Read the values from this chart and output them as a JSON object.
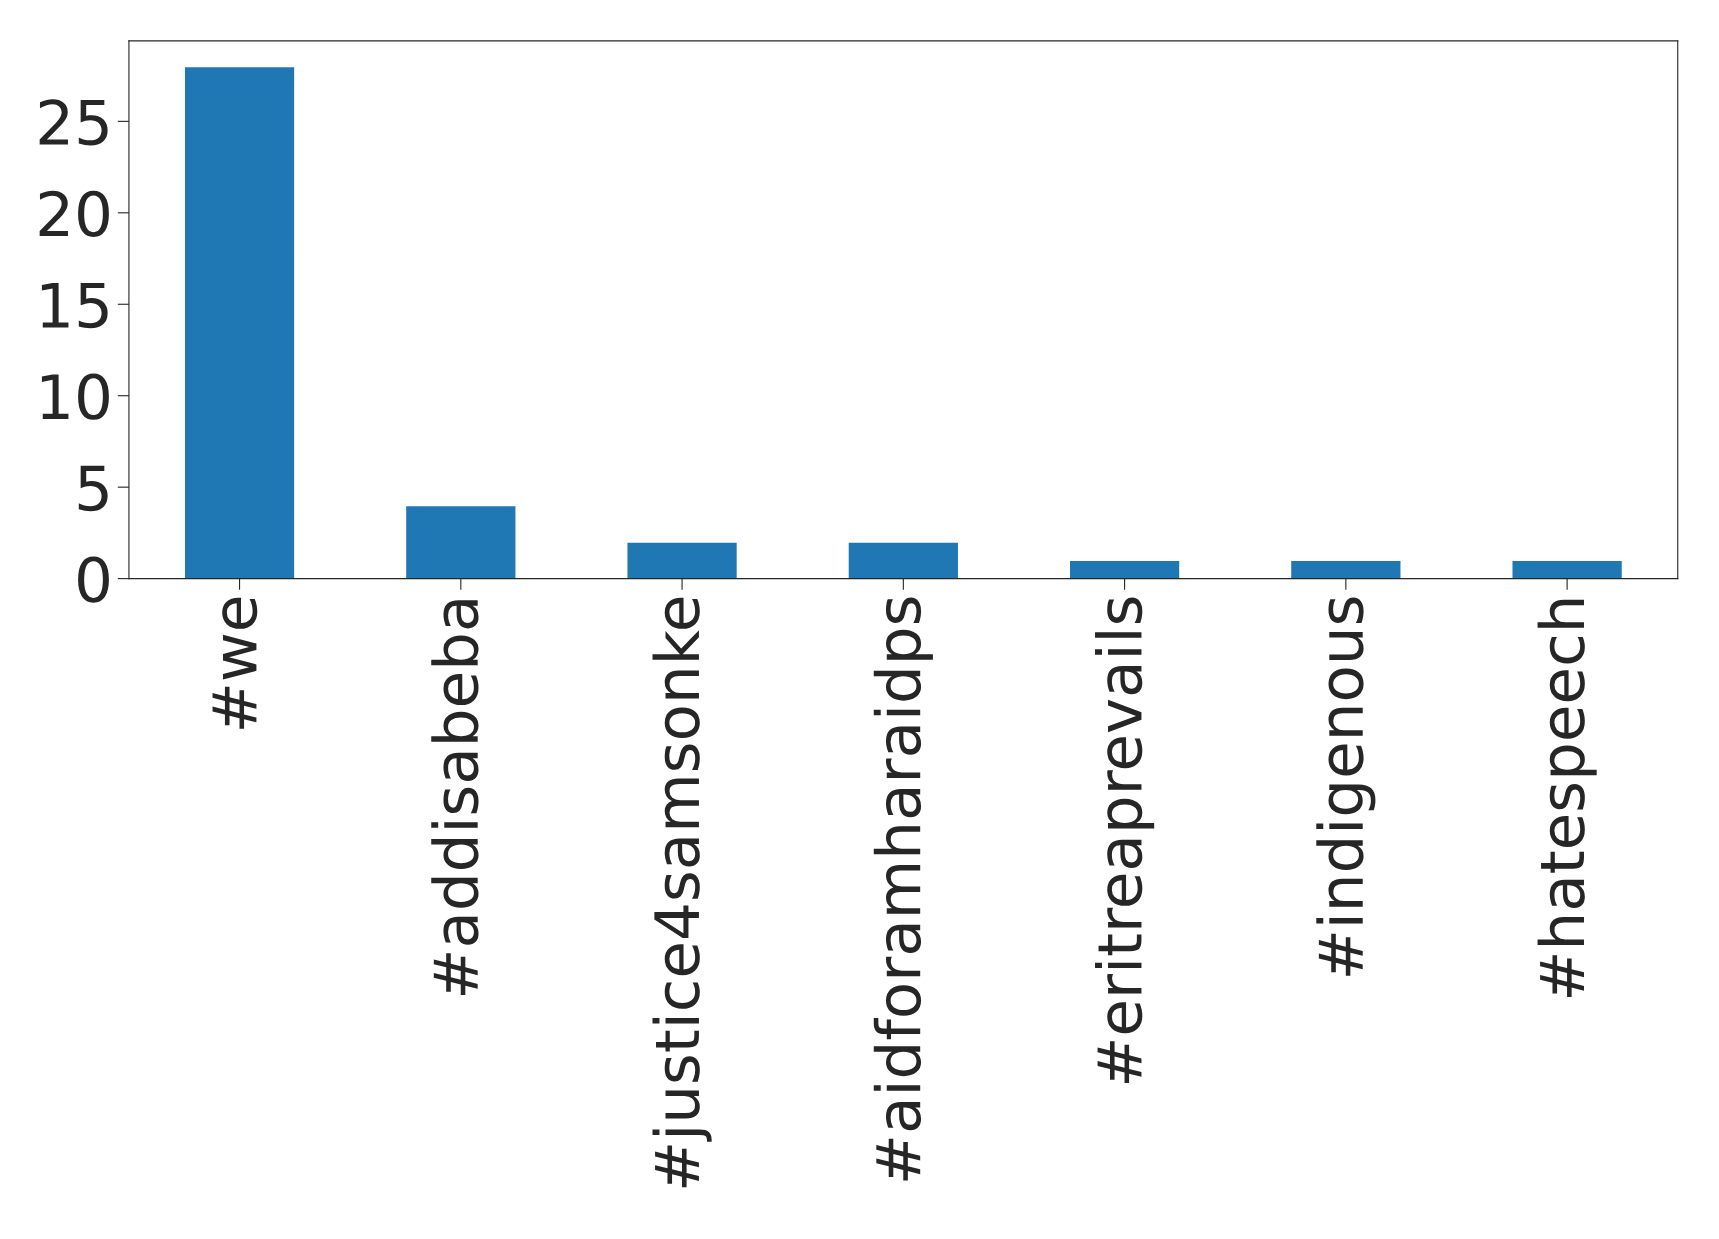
{
  "chart_data": {
    "type": "bar",
    "categories": [
      "#we",
      "#addisabeba",
      "#justice4samsonke",
      "#aidforamharaidps",
      "#eritreaprevails",
      "#indigenous",
      "#hatespeech"
    ],
    "values": [
      28,
      4,
      2,
      2,
      1,
      1,
      1
    ],
    "color": "#1f77b4",
    "ylim": [
      0,
      29.4
    ],
    "yticks": [
      0,
      5,
      10,
      15,
      20,
      25
    ],
    "grid": false,
    "legend": false
  }
}
